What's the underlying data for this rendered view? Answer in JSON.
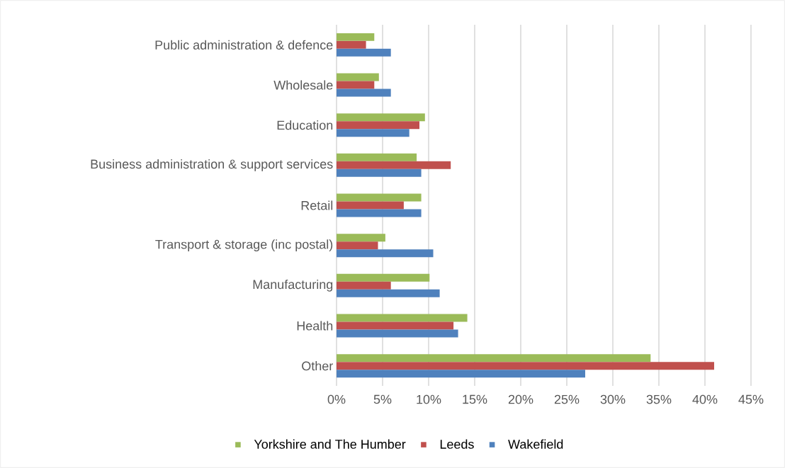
{
  "chart_data": {
    "type": "bar",
    "orientation": "horizontal",
    "categories": [
      "Public administration & defence",
      "Wholesale",
      "Education",
      "Business administration & support services",
      "Retail",
      "Transport & storage (inc postal)",
      "Manufacturing",
      "Health",
      "Other"
    ],
    "series": [
      {
        "name": "Yorkshire and The Humber",
        "color": "#9bbb59",
        "values": [
          4.1,
          4.6,
          9.6,
          8.7,
          9.2,
          5.3,
          10.1,
          14.2,
          34.1
        ]
      },
      {
        "name": "Leeds",
        "color": "#c0504d",
        "values": [
          3.2,
          4.1,
          9.0,
          12.4,
          7.3,
          4.5,
          5.9,
          12.7,
          41.0
        ]
      },
      {
        "name": "Wakefield",
        "color": "#4f81bd",
        "values": [
          5.9,
          5.9,
          7.9,
          9.2,
          9.2,
          10.5,
          11.2,
          13.2,
          27.0
        ]
      }
    ],
    "xlim": [
      0,
      45
    ],
    "xticks": [
      {
        "value": 0,
        "label": "0%"
      },
      {
        "value": 5,
        "label": "5%"
      },
      {
        "value": 10,
        "label": "10%"
      },
      {
        "value": 15,
        "label": "15%"
      },
      {
        "value": 20,
        "label": "20%"
      },
      {
        "value": 25,
        "label": "25%"
      },
      {
        "value": 30,
        "label": "30%"
      },
      {
        "value": 35,
        "label": "35%"
      },
      {
        "value": 40,
        "label": "40%"
      },
      {
        "value": 45,
        "label": "45%"
      }
    ],
    "grid": "x",
    "legend": "bottom"
  }
}
